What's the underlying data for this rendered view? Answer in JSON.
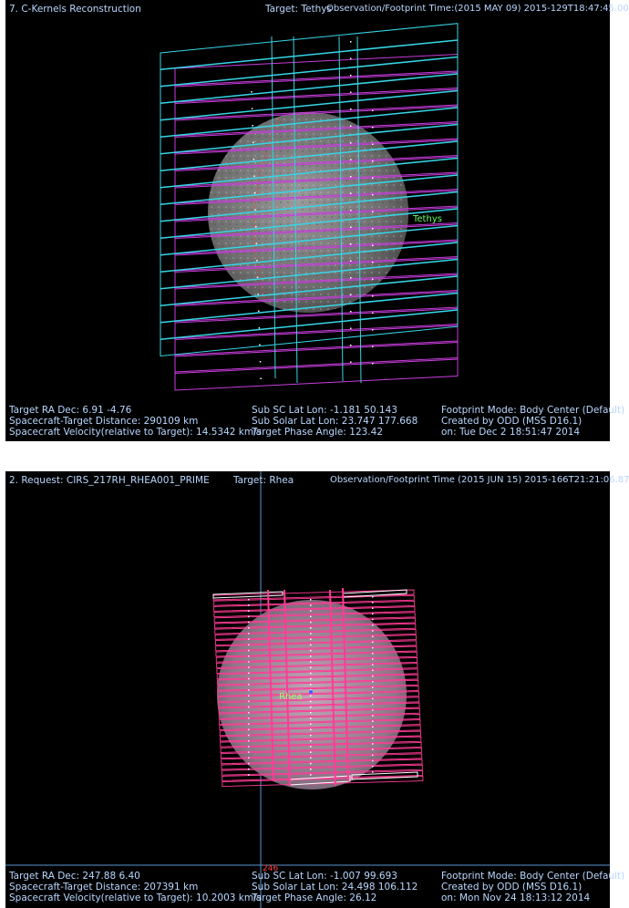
{
  "panel1": {
    "header": {
      "title": "7. C-Kernels Reconstruction",
      "target": "Target: Tethys",
      "obs_time": "Observation/Footprint Time:(2015 MAY 09) 2015-129T18:47:45.00"
    },
    "body_label": "Tethys",
    "footer": {
      "left": [
        "Target RA Dec:  6.91  -4.76",
        "Spacecraft-Target Distance:  290109 km",
        "Spacecraft Velocity(relative to Target): 14.5342 km/s"
      ],
      "middle": [
        "Sub SC Lat Lon: -1.181  50.143",
        "Sub Solar Lat Lon: 23.747  177.668",
        "Target Phase Angle: 123.42"
      ],
      "right": [
        "Footprint Mode: Body Center (Default)",
        "Created by ODD (MSS D16.1)",
        "on: Tue Dec  2 18:51:47 2014"
      ]
    },
    "colors": {
      "cyan": "#37d6e6",
      "magenta": "#c83cdc",
      "text": "#b9d7ff"
    }
  },
  "panel2": {
    "header": {
      "title": "2. Request: CIRS_217RH_RHEA001_PRIME",
      "target": "Target: Rhea",
      "obs_time": "Observation/Footprint Time (2015 JUN 15) 2015-166T21:21:06.87"
    },
    "body_label": "Rhea",
    "axis_label": "246",
    "footer": {
      "left": [
        "Target RA Dec: 247.88  6.40",
        "Spacecraft-Target Distance:  207391 km",
        "Spacecraft Velocity(relative to Target): 10.2003 km/s"
      ],
      "middle": [
        "Sub SC Lat Lon: -1.007  99.693",
        "Sub Solar Lat Lon: 24.498  106.112",
        "Target Phase Angle: 26.12"
      ],
      "right": [
        "Footprint Mode: Body Center (Default)",
        "Created by ODD (MSS D16.1)",
        "on: Mon Nov 24 18:13:12 2014"
      ]
    },
    "colors": {
      "pink": "#ff3c96",
      "white": "#ffffff",
      "axis": "#5a96d2"
    }
  }
}
